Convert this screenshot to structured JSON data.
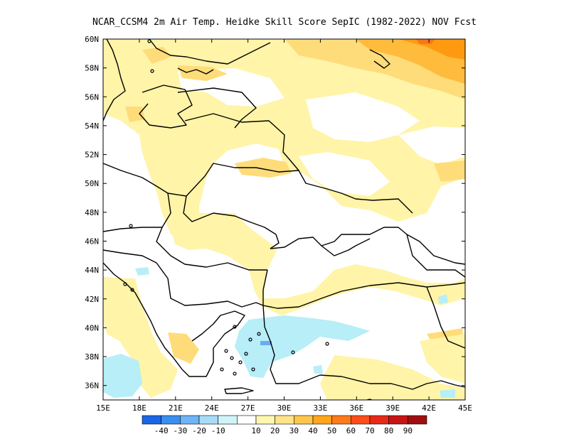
{
  "title": "NCAR_CCSM4  2m Air Temp. Heidke Skill Score SepIC (1982-2022) NOV Fcst",
  "map": {
    "lon_range": [
      15,
      45
    ],
    "lat_range": [
      35,
      60
    ],
    "lon_ticks": [
      "15E",
      "18E",
      "21E",
      "24E",
      "27E",
      "30E",
      "33E",
      "36E",
      "39E",
      "42E",
      "45E"
    ],
    "lat_ticks": [
      "36N",
      "38N",
      "40N",
      "42N",
      "44N",
      "46N",
      "48N",
      "50N",
      "52N",
      "54N",
      "56N",
      "58N",
      "60N"
    ]
  },
  "colorbar": {
    "labels": [
      "-40",
      "-30",
      "-20",
      "-10",
      "10",
      "20",
      "30",
      "40",
      "50",
      "60",
      "70",
      "80",
      "90"
    ],
    "colors": [
      "#1a66e6",
      "#3a8ef0",
      "#6fb4f5",
      "#a8dbf7",
      "#cff4f8",
      "#ffffff",
      "#fff7b0",
      "#ffe48a",
      "#ffc64d",
      "#ffa61a",
      "#ff7a1a",
      "#ff4d1a",
      "#e62a16",
      "#c71414",
      "#a00f0f"
    ]
  },
  "regions": {
    "pale_yellow": "#fff4a8",
    "light_orange": "#ffdc7a",
    "orange": "#ffbb3c",
    "deep_orange": "#ff9a10",
    "red_orange": "#ff7416",
    "light_cyan": "#b7eef7",
    "blue": "#6aaaf2"
  }
}
